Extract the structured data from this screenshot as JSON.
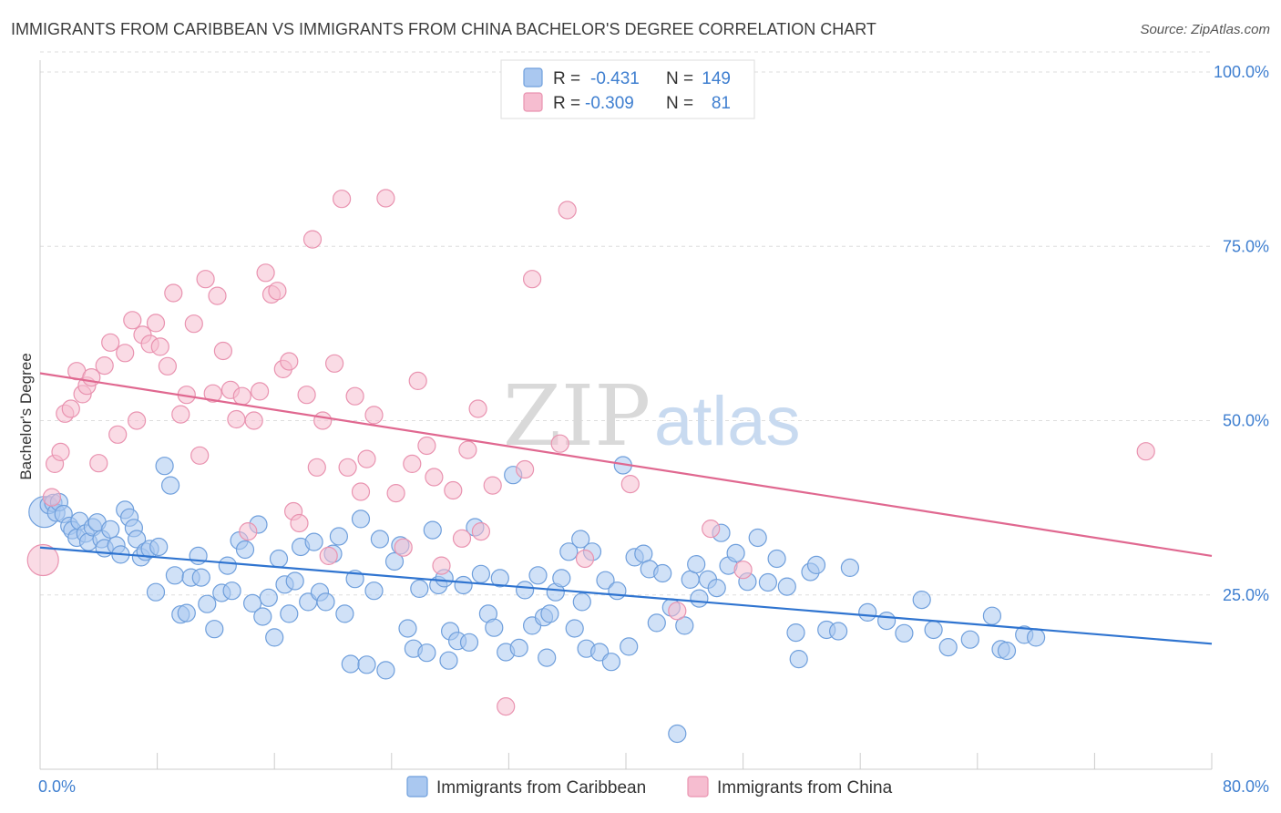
{
  "header": {
    "title": "IMMIGRANTS FROM CARIBBEAN VS IMMIGRANTS FROM CHINA BACHELOR'S DEGREE CORRELATION CHART",
    "source": "Source: ZipAtlas.com"
  },
  "watermark": {
    "zip": "ZIP",
    "atlas": "atlas"
  },
  "colors": {
    "blue_fill": "#aac8f0",
    "blue_stroke": "#6f9fdc",
    "blue_line": "#2f74d0",
    "pink_fill": "#f6bdd0",
    "pink_stroke": "#e993b0",
    "pink_line": "#e06890",
    "grid": "#dddddd",
    "tick_text": "#3f7fd0"
  },
  "legend_top": {
    "rows": [
      {
        "r_label": "R =",
        "r_value": "-0.431",
        "n_label": "N =",
        "n_value": "149"
      },
      {
        "r_label": "R =",
        "r_value": "-0.309",
        "n_label": "N =",
        "n_value": "81"
      }
    ]
  },
  "chart_data": {
    "type": "scatter",
    "title": "IMMIGRANTS FROM CARIBBEAN VS IMMIGRANTS FROM CHINA BACHELOR'S DEGREE CORRELATION CHART",
    "xlabel": "",
    "ylabel": "Bachelor's Degree",
    "xlim": [
      0,
      80
    ],
    "ylim": [
      0,
      100
    ],
    "x_tick_labels": [
      "0.0%",
      "80.0%"
    ],
    "y_ticks": [
      25,
      50,
      75,
      100
    ],
    "y_tick_labels": [
      "25.0%",
      "50.0%",
      "75.0%",
      "100.0%"
    ],
    "grid": true,
    "legend_position": "bottom",
    "series": [
      {
        "name": "Immigrants from Caribbean",
        "color": "#aac8f0",
        "trend": {
          "x": [
            0,
            80
          ],
          "y": [
            31.8,
            18.0
          ]
        },
        "points": [
          [
            0.3,
            36.9
          ],
          [
            0.6,
            37.9
          ],
          [
            0.9,
            38.2
          ],
          [
            1.1,
            36.8
          ],
          [
            1.3,
            38.3
          ],
          [
            1.6,
            36.6
          ],
          [
            2.0,
            34.9
          ],
          [
            2.2,
            34.3
          ],
          [
            2.5,
            33.2
          ],
          [
            2.7,
            35.6
          ],
          [
            3.1,
            33.8
          ],
          [
            3.3,
            32.6
          ],
          [
            3.6,
            34.7
          ],
          [
            3.9,
            35.4
          ],
          [
            4.2,
            33.0
          ],
          [
            4.4,
            31.7
          ],
          [
            4.8,
            34.4
          ],
          [
            5.2,
            32.1
          ],
          [
            5.5,
            30.8
          ],
          [
            5.8,
            37.2
          ],
          [
            6.1,
            36.1
          ],
          [
            6.4,
            34.6
          ],
          [
            6.6,
            33.0
          ],
          [
            6.9,
            30.4
          ],
          [
            7.2,
            31.2
          ],
          [
            7.5,
            31.6
          ],
          [
            7.9,
            25.4
          ],
          [
            8.1,
            31.9
          ],
          [
            8.5,
            43.5
          ],
          [
            8.9,
            40.7
          ],
          [
            9.2,
            27.8
          ],
          [
            9.6,
            22.2
          ],
          [
            10.0,
            22.4
          ],
          [
            10.3,
            27.5
          ],
          [
            10.8,
            30.6
          ],
          [
            11.0,
            27.5
          ],
          [
            11.4,
            23.7
          ],
          [
            11.9,
            20.1
          ],
          [
            12.4,
            25.3
          ],
          [
            12.8,
            29.2
          ],
          [
            13.1,
            25.6
          ],
          [
            13.6,
            32.8
          ],
          [
            14.0,
            31.5
          ],
          [
            14.5,
            23.8
          ],
          [
            14.9,
            35.1
          ],
          [
            15.2,
            21.9
          ],
          [
            15.6,
            24.6
          ],
          [
            16.0,
            18.9
          ],
          [
            16.3,
            30.2
          ],
          [
            16.7,
            26.5
          ],
          [
            17.0,
            22.3
          ],
          [
            17.4,
            27.0
          ],
          [
            17.8,
            31.9
          ],
          [
            18.3,
            24.0
          ],
          [
            18.7,
            32.6
          ],
          [
            19.1,
            25.4
          ],
          [
            19.5,
            24.0
          ],
          [
            20.0,
            30.9
          ],
          [
            20.4,
            33.4
          ],
          [
            20.8,
            22.3
          ],
          [
            21.2,
            15.1
          ],
          [
            21.5,
            27.3
          ],
          [
            21.9,
            35.9
          ],
          [
            22.3,
            15.0
          ],
          [
            22.8,
            25.6
          ],
          [
            23.2,
            33.0
          ],
          [
            23.6,
            14.2
          ],
          [
            24.2,
            29.8
          ],
          [
            24.6,
            32.1
          ],
          [
            25.1,
            20.2
          ],
          [
            25.5,
            17.3
          ],
          [
            25.9,
            25.9
          ],
          [
            26.4,
            16.7
          ],
          [
            26.8,
            34.3
          ],
          [
            27.2,
            26.4
          ],
          [
            27.6,
            27.4
          ],
          [
            28.0,
            19.8
          ],
          [
            28.5,
            18.4
          ],
          [
            28.9,
            26.4
          ],
          [
            29.3,
            18.2
          ],
          [
            29.7,
            34.7
          ],
          [
            30.1,
            28.0
          ],
          [
            30.6,
            22.3
          ],
          [
            31.0,
            20.3
          ],
          [
            31.4,
            27.4
          ],
          [
            31.8,
            16.8
          ],
          [
            32.3,
            42.2
          ],
          [
            32.7,
            17.4
          ],
          [
            33.1,
            25.7
          ],
          [
            33.6,
            20.6
          ],
          [
            34.0,
            27.8
          ],
          [
            34.4,
            21.8
          ],
          [
            34.8,
            22.3
          ],
          [
            35.2,
            25.4
          ],
          [
            35.6,
            27.4
          ],
          [
            36.1,
            31.2
          ],
          [
            36.5,
            20.2
          ],
          [
            36.9,
            33.0
          ],
          [
            37.3,
            17.3
          ],
          [
            37.7,
            31.2
          ],
          [
            38.2,
            16.8
          ],
          [
            38.6,
            27.1
          ],
          [
            39.0,
            15.4
          ],
          [
            39.4,
            25.6
          ],
          [
            39.8,
            43.6
          ],
          [
            40.2,
            17.6
          ],
          [
            40.6,
            30.4
          ],
          [
            41.2,
            30.9
          ],
          [
            41.6,
            28.7
          ],
          [
            42.1,
            21.0
          ],
          [
            42.5,
            28.1
          ],
          [
            43.1,
            23.2
          ],
          [
            43.5,
            5.1
          ],
          [
            44.0,
            20.6
          ],
          [
            44.4,
            27.2
          ],
          [
            44.8,
            29.4
          ],
          [
            45.6,
            27.2
          ],
          [
            46.2,
            26.0
          ],
          [
            46.5,
            33.9
          ],
          [
            47.0,
            29.2
          ],
          [
            47.5,
            31.0
          ],
          [
            48.3,
            26.9
          ],
          [
            49.0,
            33.2
          ],
          [
            49.7,
            26.8
          ],
          [
            50.3,
            30.2
          ],
          [
            51.0,
            26.2
          ],
          [
            51.6,
            19.6
          ],
          [
            51.8,
            15.8
          ],
          [
            52.6,
            28.3
          ],
          [
            53.7,
            20.0
          ],
          [
            54.5,
            19.8
          ],
          [
            55.3,
            28.9
          ],
          [
            56.5,
            22.5
          ],
          [
            57.8,
            21.3
          ],
          [
            59.0,
            19.5
          ],
          [
            60.2,
            24.3
          ],
          [
            61.0,
            20.0
          ],
          [
            62.0,
            17.5
          ],
          [
            63.5,
            18.6
          ],
          [
            65.0,
            22.0
          ],
          [
            65.6,
            17.2
          ],
          [
            66.0,
            17.0
          ],
          [
            67.2,
            19.3
          ],
          [
            68.0,
            18.9
          ],
          [
            34.6,
            16.0
          ],
          [
            45.0,
            24.5
          ],
          [
            53.0,
            29.3
          ],
          [
            27.9,
            15.6
          ],
          [
            37.0,
            24.0
          ]
        ]
      },
      {
        "name": "Immigrants from China",
        "color": "#f6bdd0",
        "trend": {
          "x": [
            0,
            80
          ],
          "y": [
            56.8,
            30.6
          ]
        },
        "points": [
          [
            0.2,
            30.0
          ],
          [
            0.8,
            39.0
          ],
          [
            1.0,
            43.8
          ],
          [
            1.4,
            45.5
          ],
          [
            1.7,
            51.0
          ],
          [
            2.1,
            51.7
          ],
          [
            2.5,
            57.1
          ],
          [
            2.9,
            53.8
          ],
          [
            3.2,
            55.0
          ],
          [
            3.5,
            56.2
          ],
          [
            4.0,
            43.9
          ],
          [
            4.4,
            57.9
          ],
          [
            4.8,
            61.2
          ],
          [
            5.3,
            48.0
          ],
          [
            5.8,
            59.7
          ],
          [
            6.3,
            64.4
          ],
          [
            6.6,
            50.0
          ],
          [
            7.0,
            62.3
          ],
          [
            7.5,
            61.0
          ],
          [
            7.9,
            64.0
          ],
          [
            8.2,
            60.6
          ],
          [
            8.7,
            57.8
          ],
          [
            9.1,
            68.3
          ],
          [
            9.6,
            50.9
          ],
          [
            10.0,
            53.7
          ],
          [
            10.5,
            63.9
          ],
          [
            10.9,
            45.0
          ],
          [
            11.3,
            70.3
          ],
          [
            11.8,
            53.9
          ],
          [
            12.1,
            67.9
          ],
          [
            12.5,
            60.0
          ],
          [
            13.0,
            54.4
          ],
          [
            13.4,
            50.2
          ],
          [
            13.8,
            53.5
          ],
          [
            14.2,
            34.1
          ],
          [
            14.6,
            50.0
          ],
          [
            15.0,
            54.2
          ],
          [
            15.4,
            71.2
          ],
          [
            15.8,
            68.1
          ],
          [
            16.2,
            68.6
          ],
          [
            16.6,
            57.4
          ],
          [
            17.0,
            58.5
          ],
          [
            17.3,
            37.0
          ],
          [
            17.7,
            35.3
          ],
          [
            18.2,
            53.7
          ],
          [
            18.6,
            76.0
          ],
          [
            18.9,
            43.3
          ],
          [
            19.3,
            50.0
          ],
          [
            19.7,
            30.6
          ],
          [
            20.1,
            58.2
          ],
          [
            20.6,
            81.8
          ],
          [
            21.0,
            43.3
          ],
          [
            21.5,
            53.5
          ],
          [
            21.9,
            39.8
          ],
          [
            22.3,
            44.5
          ],
          [
            22.8,
            50.8
          ],
          [
            23.6,
            81.9
          ],
          [
            24.3,
            39.6
          ],
          [
            24.8,
            31.8
          ],
          [
            25.4,
            43.8
          ],
          [
            25.8,
            55.7
          ],
          [
            26.4,
            46.4
          ],
          [
            26.9,
            41.9
          ],
          [
            27.4,
            29.2
          ],
          [
            28.2,
            40.0
          ],
          [
            28.8,
            33.1
          ],
          [
            29.2,
            45.8
          ],
          [
            29.9,
            51.7
          ],
          [
            30.1,
            34.1
          ],
          [
            30.9,
            40.7
          ],
          [
            31.8,
            9.0
          ],
          [
            33.1,
            43.0
          ],
          [
            33.6,
            70.3
          ],
          [
            35.5,
            46.7
          ],
          [
            36.0,
            80.2
          ],
          [
            37.2,
            30.2
          ],
          [
            40.3,
            40.9
          ],
          [
            43.5,
            22.7
          ],
          [
            45.8,
            34.5
          ],
          [
            48.0,
            28.6
          ],
          [
            75.5,
            45.6
          ]
        ]
      }
    ]
  }
}
